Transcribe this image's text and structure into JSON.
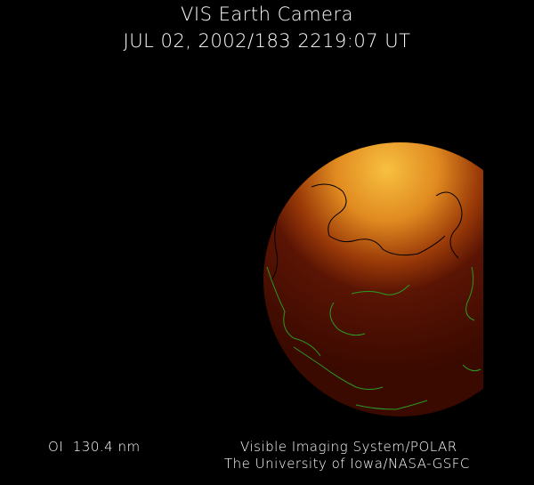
{
  "header": {
    "title": "VIS Earth Camera",
    "datetime": "JUL 02, 2002/183 2219:07 UT"
  },
  "footer": {
    "wavelength": "OI  130.4 nm",
    "instrument": "Visible Imaging System/POLAR",
    "institution": "The University of Iowa/NASA-GSFC"
  },
  "colors": {
    "background": "#000000",
    "aurora_bright": "#f0a030",
    "earth_dark": "#3a0a00",
    "coastline_day": "#000000",
    "coastline_night": "#2a9a20"
  }
}
